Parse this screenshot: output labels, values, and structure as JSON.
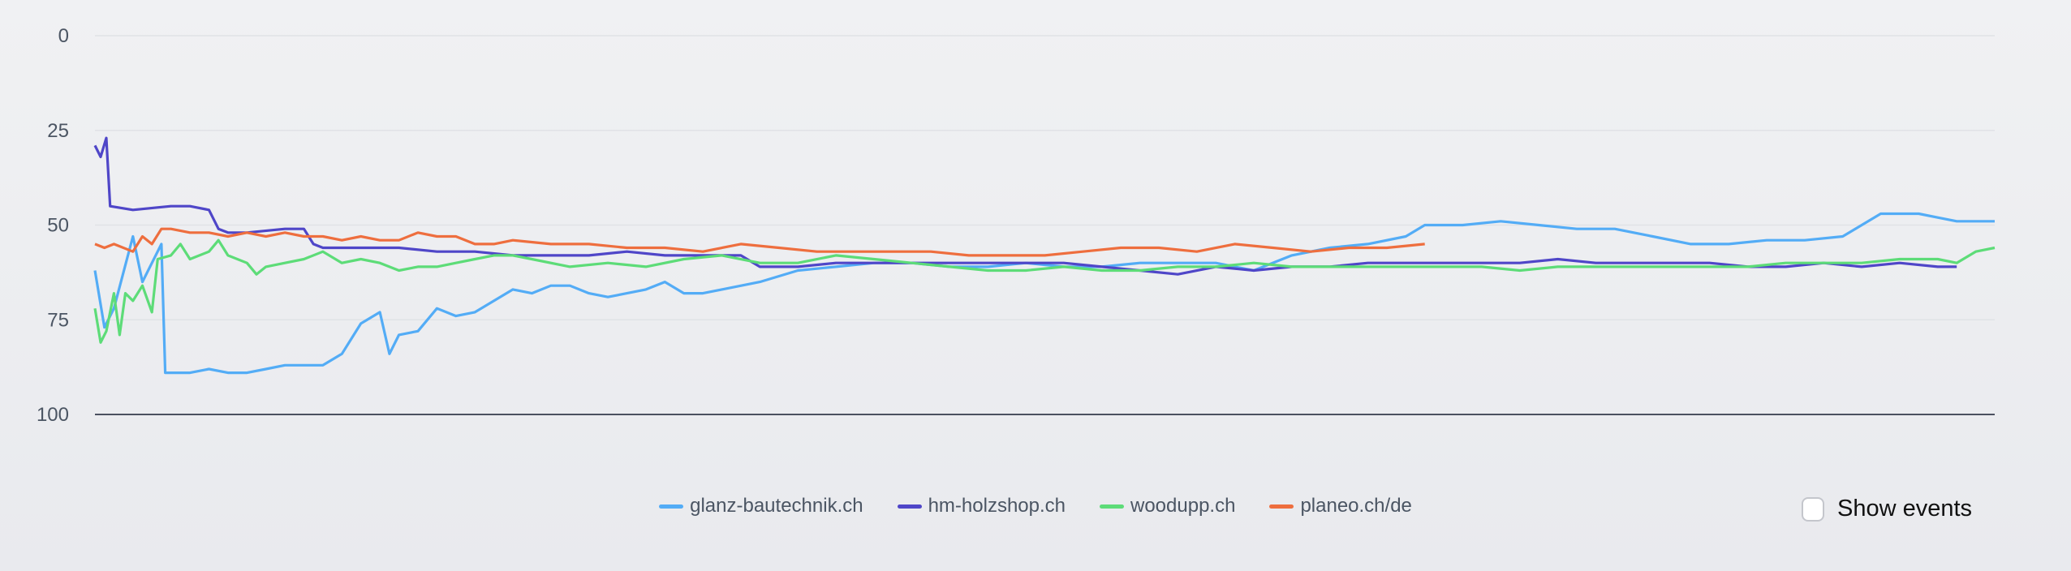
{
  "chart_data": {
    "type": "line",
    "title": "",
    "xlabel": "",
    "ylabel": "",
    "ylim": [
      0,
      100
    ],
    "y_inverted": true,
    "xlim": [
      0,
      100
    ],
    "yticks": [
      "0",
      "25",
      "50",
      "75",
      "100"
    ],
    "grid": true,
    "legend_position": "bottom-center",
    "series": [
      {
        "name": "glanz-bautechnik.ch",
        "color": "#53acf6",
        "points": [
          [
            0,
            62
          ],
          [
            0.5,
            77
          ],
          [
            1,
            72
          ],
          [
            2,
            53
          ],
          [
            2.5,
            65
          ],
          [
            3,
            60
          ],
          [
            3.5,
            55
          ],
          [
            3.7,
            89
          ],
          [
            4,
            89
          ],
          [
            5,
            89
          ],
          [
            6,
            88
          ],
          [
            7,
            89
          ],
          [
            8,
            89
          ],
          [
            9,
            88
          ],
          [
            10,
            87
          ],
          [
            11,
            87
          ],
          [
            12,
            87
          ],
          [
            13,
            84
          ],
          [
            14,
            76
          ],
          [
            15,
            73
          ],
          [
            15.5,
            84
          ],
          [
            16,
            79
          ],
          [
            17,
            78
          ],
          [
            18,
            72
          ],
          [
            19,
            74
          ],
          [
            20,
            73
          ],
          [
            21,
            70
          ],
          [
            22,
            67
          ],
          [
            23,
            68
          ],
          [
            24,
            66
          ],
          [
            25,
            66
          ],
          [
            26,
            68
          ],
          [
            27,
            69
          ],
          [
            28,
            68
          ],
          [
            29,
            67
          ],
          [
            30,
            65
          ],
          [
            31,
            68
          ],
          [
            32,
            68
          ],
          [
            33,
            67
          ],
          [
            35,
            65
          ],
          [
            37,
            62
          ],
          [
            39,
            61
          ],
          [
            41,
            60
          ],
          [
            43,
            60
          ],
          [
            45,
            61
          ],
          [
            47,
            61
          ],
          [
            49,
            60
          ],
          [
            51,
            61
          ],
          [
            53,
            61
          ],
          [
            55,
            60
          ],
          [
            57,
            60
          ],
          [
            59,
            60
          ],
          [
            61,
            62
          ],
          [
            63,
            58
          ],
          [
            65,
            56
          ],
          [
            67,
            55
          ],
          [
            69,
            53
          ],
          [
            70,
            50
          ],
          [
            72,
            50
          ],
          [
            74,
            49
          ],
          [
            76,
            50
          ],
          [
            78,
            51
          ],
          [
            80,
            51
          ],
          [
            82,
            53
          ],
          [
            84,
            55
          ],
          [
            86,
            55
          ],
          [
            88,
            54
          ],
          [
            90,
            54
          ],
          [
            92,
            53
          ],
          [
            93,
            50
          ],
          [
            94,
            47
          ],
          [
            95,
            47
          ],
          [
            96,
            47
          ],
          [
            97,
            48
          ],
          [
            98,
            49
          ],
          [
            100,
            49
          ]
        ]
      },
      {
        "name": "hm-holzshop.ch",
        "color": "#4f46c8",
        "points": [
          [
            0,
            29
          ],
          [
            0.3,
            32
          ],
          [
            0.6,
            27
          ],
          [
            0.8,
            45
          ],
          [
            2,
            46
          ],
          [
            4,
            45
          ],
          [
            5,
            45
          ],
          [
            6,
            46
          ],
          [
            6.5,
            51
          ],
          [
            7,
            52
          ],
          [
            8,
            52
          ],
          [
            10,
            51
          ],
          [
            11,
            51
          ],
          [
            11.5,
            55
          ],
          [
            12,
            56
          ],
          [
            14,
            56
          ],
          [
            16,
            56
          ],
          [
            18,
            57
          ],
          [
            20,
            57
          ],
          [
            22,
            58
          ],
          [
            24,
            58
          ],
          [
            26,
            58
          ],
          [
            28,
            57
          ],
          [
            30,
            58
          ],
          [
            32,
            58
          ],
          [
            34,
            58
          ],
          [
            35,
            61
          ],
          [
            37,
            61
          ],
          [
            39,
            60
          ],
          [
            41,
            60
          ],
          [
            43,
            60
          ],
          [
            45,
            60
          ],
          [
            47,
            60
          ],
          [
            49,
            60
          ],
          [
            51,
            60
          ],
          [
            53,
            61
          ],
          [
            55,
            62
          ],
          [
            57,
            63
          ],
          [
            59,
            61
          ],
          [
            61,
            62
          ],
          [
            63,
            61
          ],
          [
            65,
            61
          ],
          [
            67,
            60
          ],
          [
            69,
            60
          ],
          [
            71,
            60
          ],
          [
            73,
            60
          ],
          [
            75,
            60
          ],
          [
            77,
            59
          ],
          [
            79,
            60
          ],
          [
            81,
            60
          ],
          [
            83,
            60
          ],
          [
            85,
            60
          ],
          [
            87,
            61
          ],
          [
            89,
            61
          ],
          [
            91,
            60
          ],
          [
            93,
            61
          ],
          [
            95,
            60
          ],
          [
            97,
            61
          ],
          [
            98,
            61
          ]
        ]
      },
      {
        "name": "woodupp.ch",
        "color": "#5ddc78",
        "points": [
          [
            0,
            72
          ],
          [
            0.3,
            81
          ],
          [
            0.6,
            78
          ],
          [
            1,
            68
          ],
          [
            1.3,
            79
          ],
          [
            1.6,
            68
          ],
          [
            2,
            70
          ],
          [
            2.5,
            66
          ],
          [
            3,
            73
          ],
          [
            3.3,
            59
          ],
          [
            4,
            58
          ],
          [
            4.5,
            55
          ],
          [
            5,
            59
          ],
          [
            6,
            57
          ],
          [
            6.5,
            54
          ],
          [
            7,
            58
          ],
          [
            8,
            60
          ],
          [
            8.5,
            63
          ],
          [
            9,
            61
          ],
          [
            10,
            60
          ],
          [
            11,
            59
          ],
          [
            12,
            57
          ],
          [
            13,
            60
          ],
          [
            14,
            59
          ],
          [
            15,
            60
          ],
          [
            16,
            62
          ],
          [
            17,
            61
          ],
          [
            18,
            61
          ],
          [
            19,
            60
          ],
          [
            20,
            59
          ],
          [
            21,
            58
          ],
          [
            22,
            58
          ],
          [
            23,
            59
          ],
          [
            25,
            61
          ],
          [
            27,
            60
          ],
          [
            29,
            61
          ],
          [
            31,
            59
          ],
          [
            33,
            58
          ],
          [
            35,
            60
          ],
          [
            37,
            60
          ],
          [
            39,
            58
          ],
          [
            41,
            59
          ],
          [
            43,
            60
          ],
          [
            45,
            61
          ],
          [
            47,
            62
          ],
          [
            49,
            62
          ],
          [
            51,
            61
          ],
          [
            53,
            62
          ],
          [
            55,
            62
          ],
          [
            57,
            61
          ],
          [
            59,
            61
          ],
          [
            61,
            60
          ],
          [
            63,
            61
          ],
          [
            65,
            61
          ],
          [
            67,
            61
          ],
          [
            69,
            61
          ],
          [
            71,
            61
          ],
          [
            73,
            61
          ],
          [
            75,
            62
          ],
          [
            77,
            61
          ],
          [
            79,
            61
          ],
          [
            81,
            61
          ],
          [
            83,
            61
          ],
          [
            85,
            61
          ],
          [
            87,
            61
          ],
          [
            89,
            60
          ],
          [
            91,
            60
          ],
          [
            93,
            60
          ],
          [
            95,
            59
          ],
          [
            97,
            59
          ],
          [
            98,
            60
          ],
          [
            99,
            57
          ],
          [
            100,
            56
          ]
        ]
      },
      {
        "name": "planeo.ch/de",
        "color": "#ee6e3e",
        "points": [
          [
            0,
            55
          ],
          [
            0.5,
            56
          ],
          [
            1,
            55
          ],
          [
            2,
            57
          ],
          [
            2.5,
            53
          ],
          [
            3,
            55
          ],
          [
            3.5,
            51
          ],
          [
            4,
            51
          ],
          [
            5,
            52
          ],
          [
            6,
            52
          ],
          [
            7,
            53
          ],
          [
            8,
            52
          ],
          [
            9,
            53
          ],
          [
            10,
            52
          ],
          [
            11,
            53
          ],
          [
            12,
            53
          ],
          [
            13,
            54
          ],
          [
            14,
            53
          ],
          [
            15,
            54
          ],
          [
            16,
            54
          ],
          [
            17,
            52
          ],
          [
            18,
            53
          ],
          [
            19,
            53
          ],
          [
            20,
            55
          ],
          [
            21,
            55
          ],
          [
            22,
            54
          ],
          [
            24,
            55
          ],
          [
            26,
            55
          ],
          [
            28,
            56
          ],
          [
            30,
            56
          ],
          [
            32,
            57
          ],
          [
            34,
            55
          ],
          [
            36,
            56
          ],
          [
            38,
            57
          ],
          [
            40,
            57
          ],
          [
            42,
            57
          ],
          [
            44,
            57
          ],
          [
            46,
            58
          ],
          [
            48,
            58
          ],
          [
            50,
            58
          ],
          [
            52,
            57
          ],
          [
            54,
            56
          ],
          [
            56,
            56
          ],
          [
            58,
            57
          ],
          [
            60,
            55
          ],
          [
            62,
            56
          ],
          [
            64,
            57
          ],
          [
            66,
            56
          ],
          [
            68,
            56
          ],
          [
            70,
            55
          ]
        ]
      }
    ]
  },
  "controls": {
    "show_events_label": "Show events",
    "show_events_checked": false
  }
}
